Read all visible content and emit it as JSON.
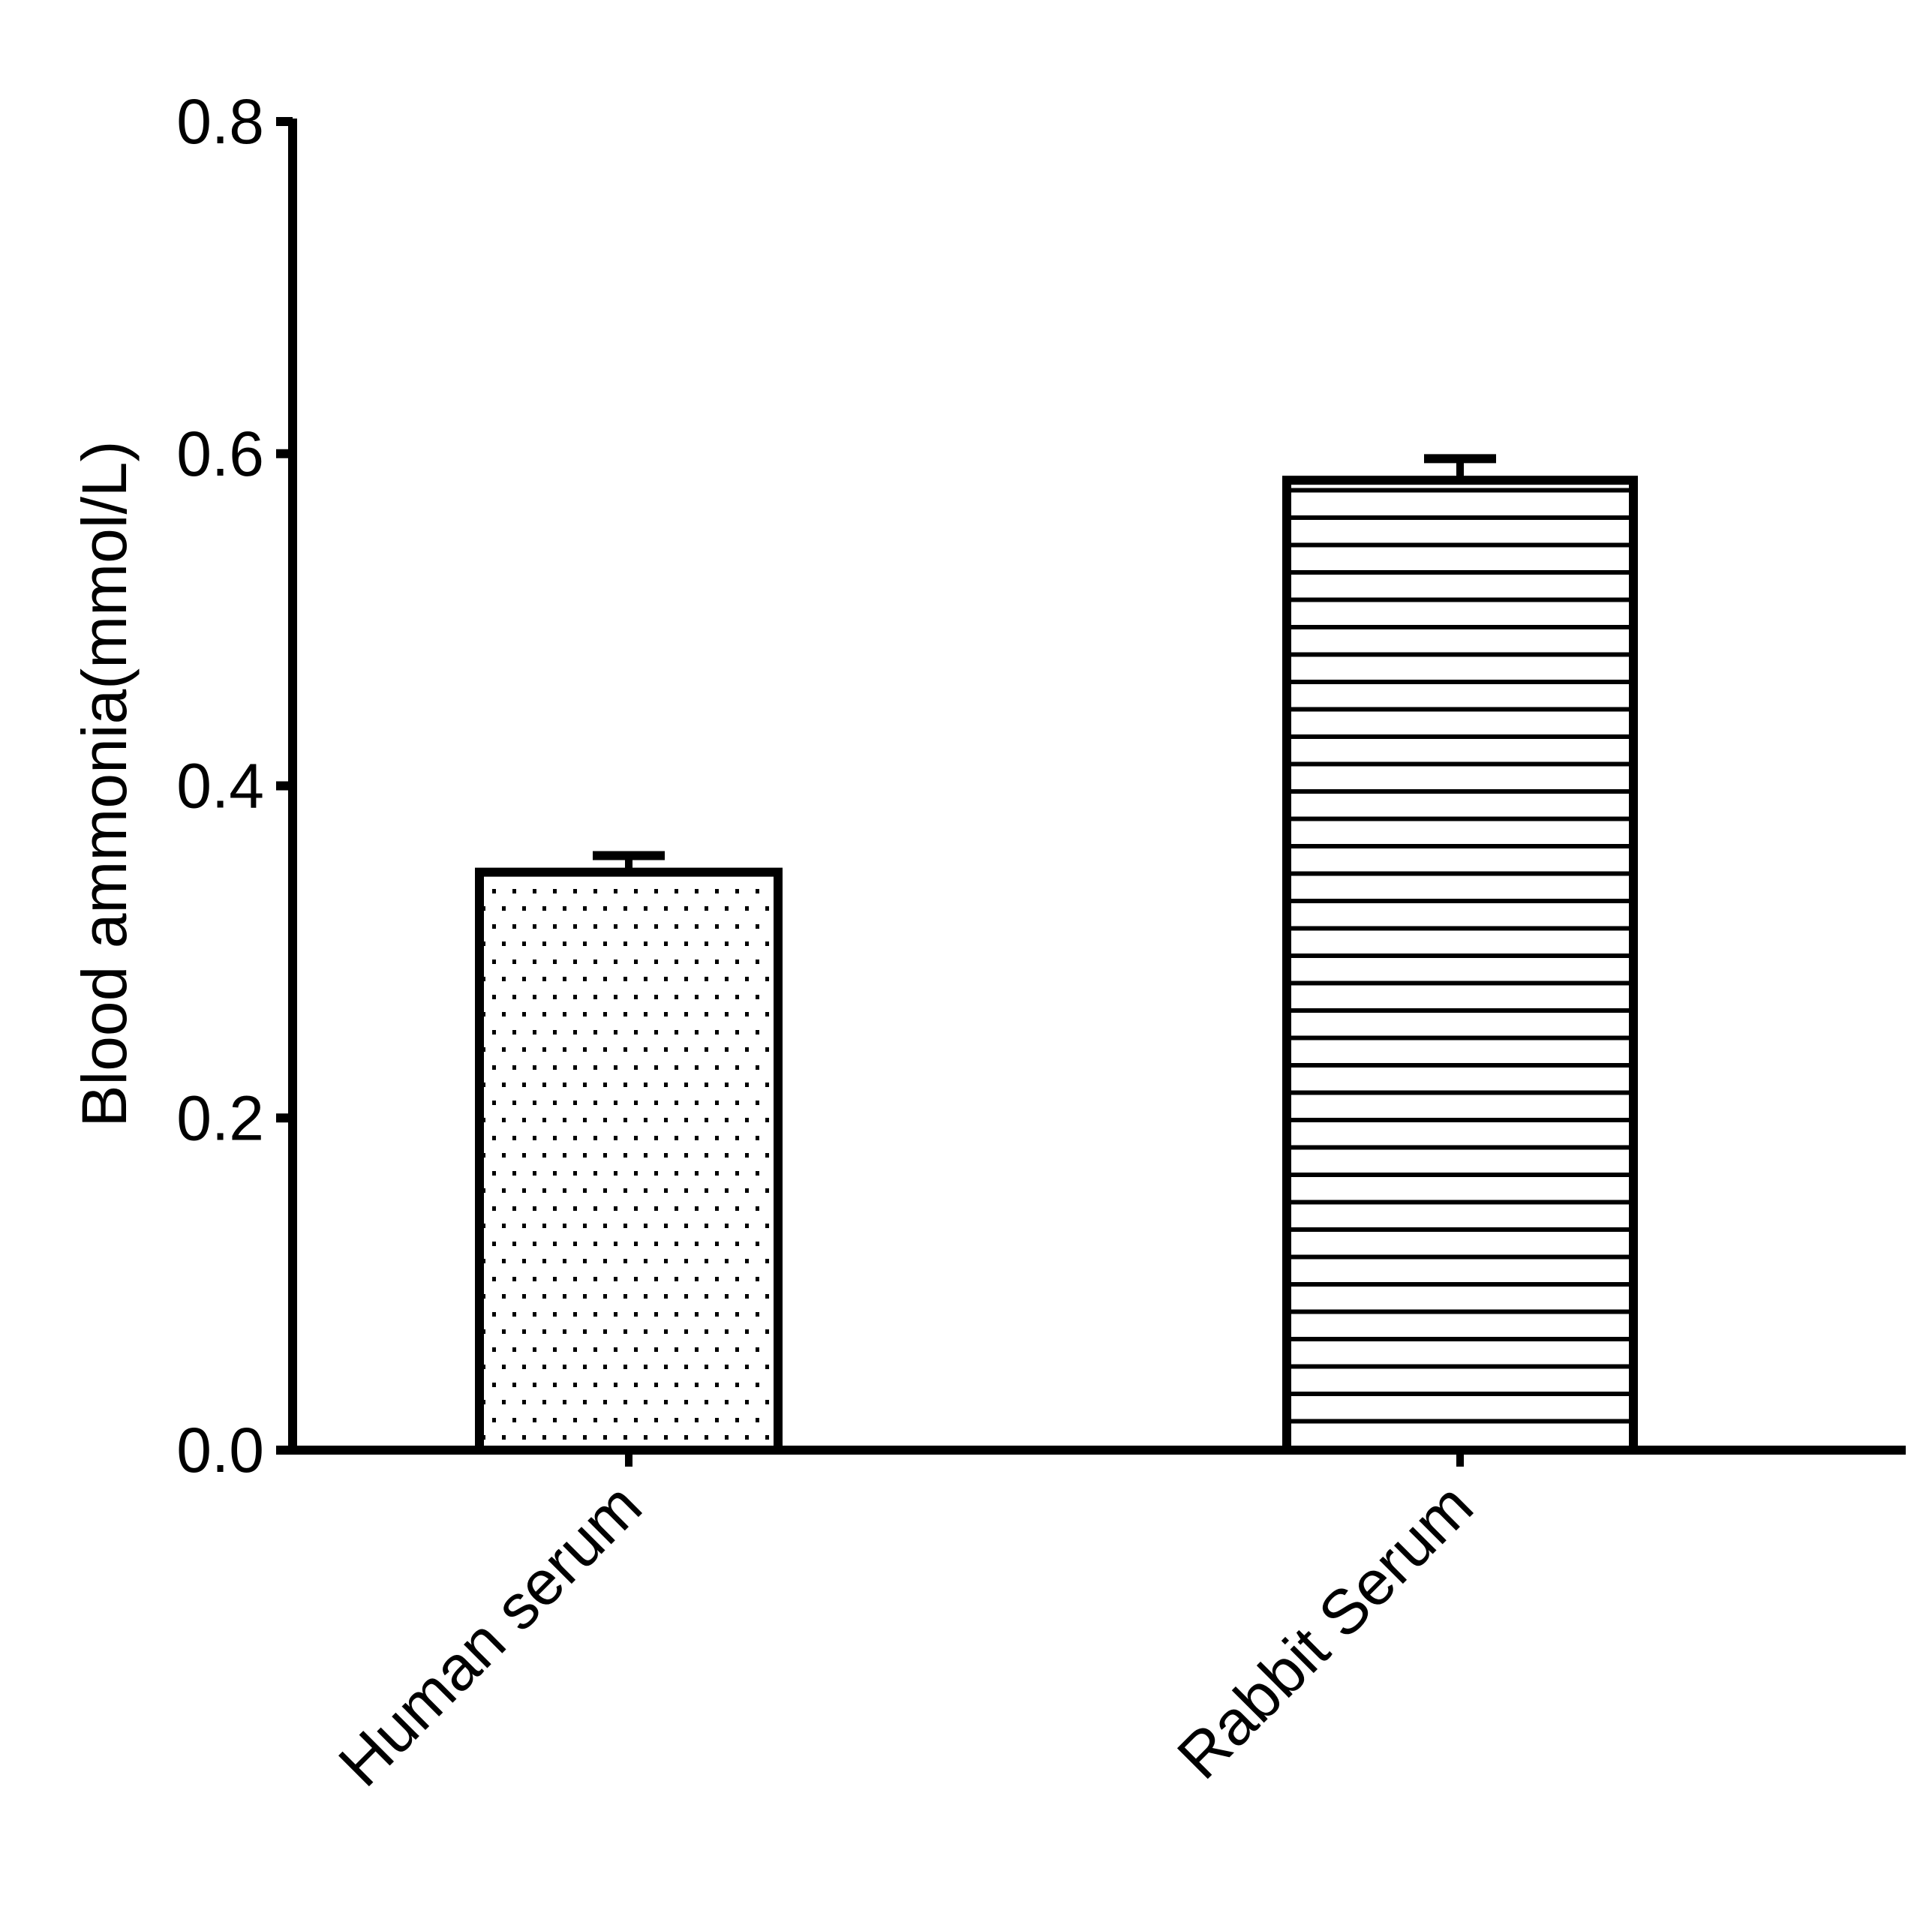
{
  "chart_data": {
    "type": "bar",
    "title": "",
    "xlabel": "",
    "ylabel": "Blood ammonia(mmol/L)",
    "categories": [
      "Human serum",
      "Rabbit Serum"
    ],
    "values": [
      0.348,
      0.584
    ],
    "error": [
      0.01,
      0.013
    ],
    "patterns": [
      "dots",
      "horizontal-lines"
    ],
    "ylim": [
      0,
      0.8
    ],
    "yticks": [
      "0.0",
      "0.2",
      "0.4",
      "0.6",
      "0.8"
    ],
    "grid": false,
    "legend": null
  }
}
